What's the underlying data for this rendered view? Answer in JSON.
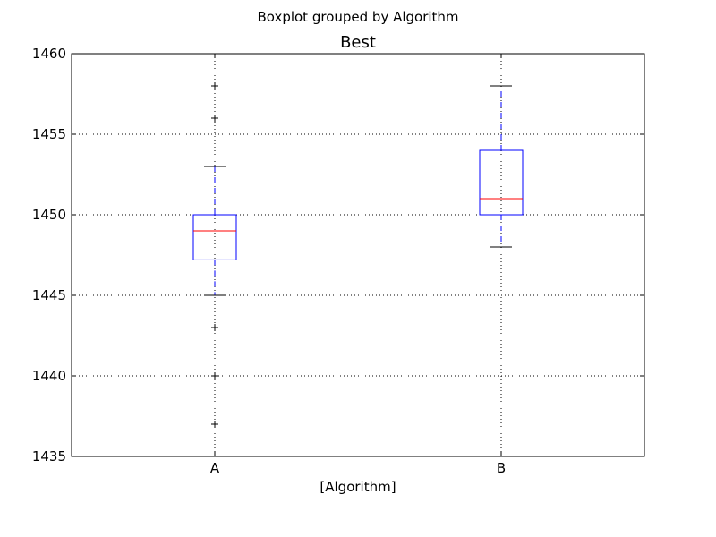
{
  "suptitle": "Boxplot grouped by Algorithm",
  "chart_data": {
    "type": "boxplot",
    "title": "Best",
    "xlabel": "[Algorithm]",
    "ylabel": "",
    "ylim": [
      1435,
      1460
    ],
    "yticks": [
      1435,
      1440,
      1445,
      1450,
      1455,
      1460
    ],
    "grid": true,
    "categories": [
      "A",
      "B"
    ],
    "boxes": [
      {
        "category": "A",
        "whisker_low": 1445,
        "q1": 1447.2,
        "median": 1449,
        "q3": 1450,
        "whisker_high": 1453,
        "outliers": [
          1458,
          1456,
          1443,
          1440,
          1437
        ]
      },
      {
        "category": "B",
        "whisker_low": 1448,
        "q1": 1450,
        "median": 1451,
        "q3": 1454,
        "whisker_high": 1458,
        "outliers": []
      }
    ],
    "colors": {
      "box": "#0000ff",
      "median": "#ff0000",
      "whisker": "#0000ff",
      "cap": "#000000",
      "outlier": "#000000",
      "grid": "#000000",
      "frame": "#000000"
    }
  }
}
